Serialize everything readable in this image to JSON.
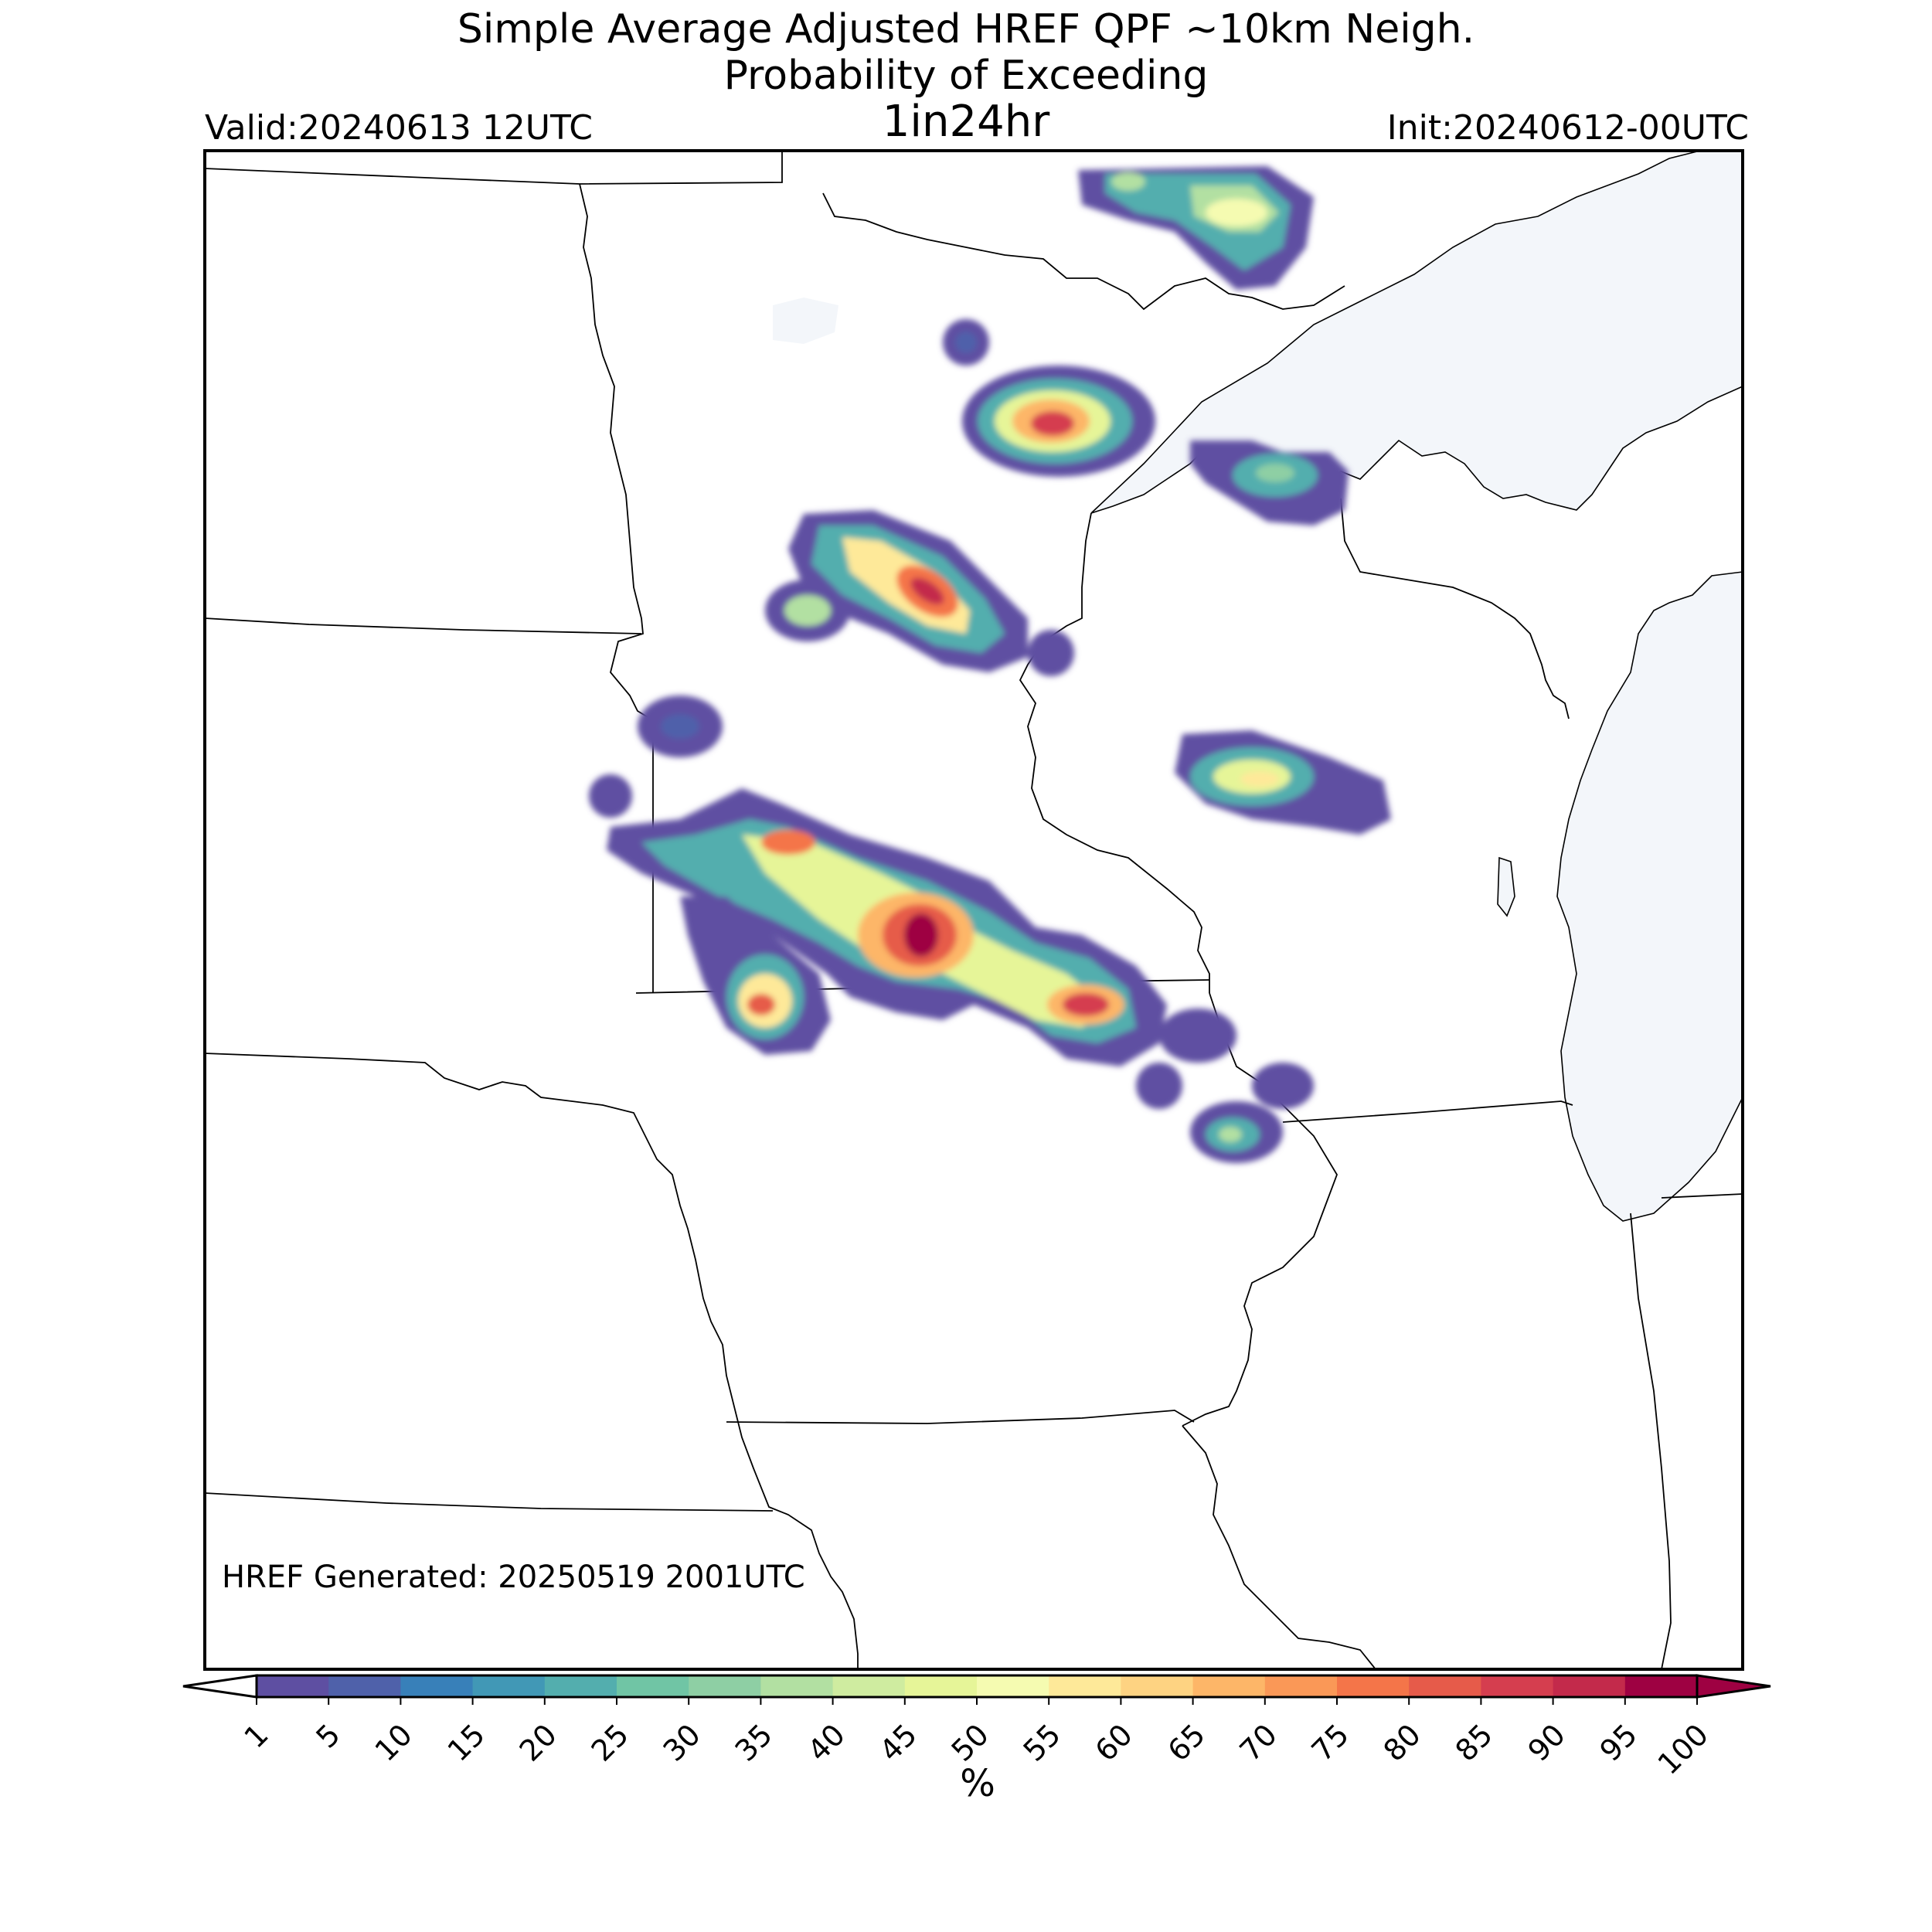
{
  "title": {
    "line1": "Simple Average Adjusted HREF QPF ~10km Neigh.",
    "line2": "Probability of Exceeding",
    "threshold": "1in24hr"
  },
  "valid": "Valid:20240613 12UTC",
  "init": "Init:20240612-00UTC",
  "generated": "HREF Generated: 20250519 2001UTC",
  "colorbar": {
    "units": "%",
    "levels": [
      1,
      5,
      10,
      15,
      20,
      25,
      30,
      35,
      40,
      45,
      50,
      55,
      60,
      65,
      70,
      75,
      80,
      85,
      90,
      95,
      100
    ],
    "colors": [
      "#5e4fa2",
      "#4f61aa",
      "#3880b9",
      "#4198b6",
      "#53aeae",
      "#70c5a5",
      "#8ecfa4",
      "#b2e0a2",
      "#cfecA0",
      "#e6f598",
      "#f5fbb1",
      "#fee999",
      "#fed382",
      "#fdb668",
      "#fa9857",
      "#f47549",
      "#e65b4a",
      "#d53e4f",
      "#c32a4b",
      "#9e0142"
    ],
    "under_color": "#ffffff",
    "over_color": "#9e0142",
    "extend": "both"
  },
  "map": {
    "water_color": "#f3f6fa",
    "border_color": "#000000",
    "region": "Upper Midwest / Great Lakes"
  },
  "probability_areas": [
    {
      "id": "northern-ontario-cluster",
      "peak_percent": 50
    },
    {
      "id": "northern-minnesota-small-cell",
      "peak_percent": 10
    },
    {
      "id": "north-central-minnesota-cluster",
      "peak_percent": 85
    },
    {
      "id": "lake-superior-shore-cluster",
      "peak_percent": 30
    },
    {
      "id": "central-minnesota-band",
      "peak_percent": 85
    },
    {
      "id": "western-wisconsin-cell",
      "peak_percent": 10
    },
    {
      "id": "central-wisconsin-band",
      "peak_percent": 55
    },
    {
      "id": "southern-minnesota-band",
      "peak_percent": 95
    },
    {
      "id": "southwest-minnesota-cell",
      "peak_percent": 75
    },
    {
      "id": "southeast-minnesota-cell",
      "peak_percent": 85
    },
    {
      "id": "northeast-iowa-cells",
      "peak_percent": 40
    }
  ]
}
